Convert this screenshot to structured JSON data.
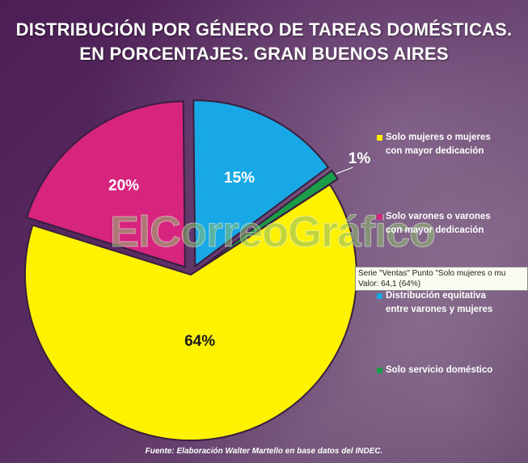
{
  "title_line1": "DISTRIBUCIÓN POR GÉNERO DE TAREAS DOMÉSTICAS.",
  "title_line2": "EN PORCENTAJES. GRAN BUENOS AIRES",
  "chart_data": {
    "type": "pie",
    "title": "DISTRIBUCIÓN POR GÉNERO DE TAREAS DOMÉSTICAS. EN PORCENTAJES. GRAN BUENOS AIRES",
    "legend_position": "right",
    "slices": [
      {
        "label": "Solo mujeres o mujeres con mayor dedicación",
        "value": 64,
        "display": "64%",
        "color": "#fff200",
        "text_color": "#1a1a1a",
        "exploded": false
      },
      {
        "label": "Solo varones o varones con mayor dedicación",
        "value": 20,
        "display": "20%",
        "color": "#d6247f",
        "text_color": "#ffffff",
        "exploded": true
      },
      {
        "label": "Distribución equitativa entre varones y mujeres",
        "value": 15,
        "display": "15%",
        "color": "#18a8e6",
        "text_color": "#ffffff",
        "exploded": true
      },
      {
        "label": "Solo servicio doméstico",
        "value": 1,
        "display": "1%",
        "color": "#1a9c48",
        "text_color": "#ffffff",
        "exploded": true
      }
    ]
  },
  "legend": [
    {
      "line1": "Solo mujeres o mujeres",
      "line2": "con mayor dedicación",
      "color": "#fff200"
    },
    {
      "line1": "Solo varones o varones",
      "line2": "con mayor dedicación",
      "color": "#d6247f"
    },
    {
      "line1": "Distribución equitativa",
      "line2": "entre varones y mujeres",
      "color": "#18a8e6"
    },
    {
      "line1": "Solo servicio doméstico",
      "line2": "",
      "color": "#1a9c48"
    }
  ],
  "tooltip": {
    "line1": "Serie \"Ventas\" Punto \"Solo mujeres o mu",
    "line2": "Valor: 64,1 (64%)"
  },
  "watermark": "ElCorreoGráfico",
  "source": "Fuente: Elaboración Walter Martello en base datos del INDEC."
}
